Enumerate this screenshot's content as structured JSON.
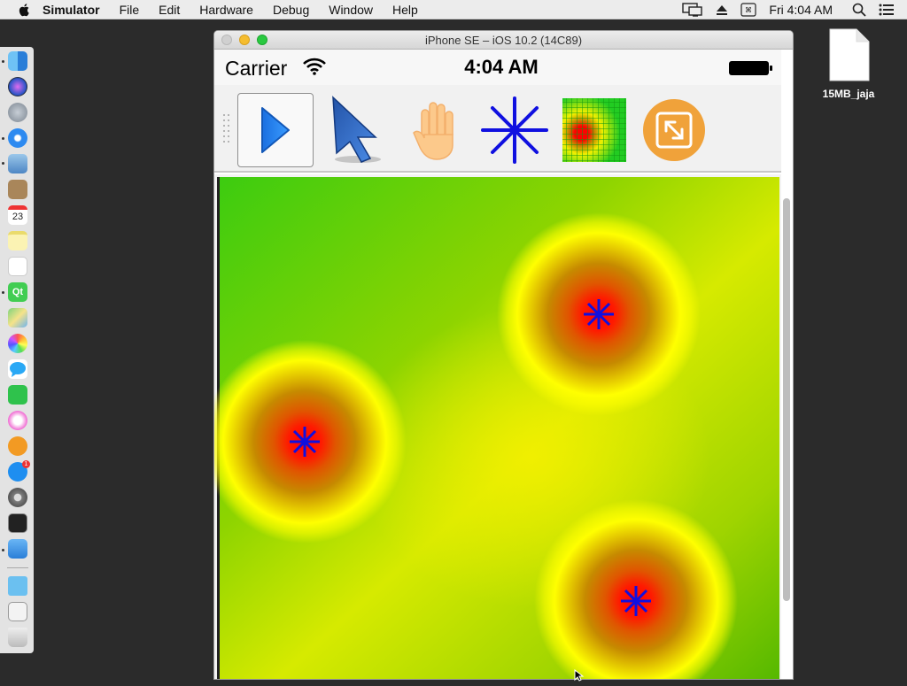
{
  "menubar": {
    "app_name": "Simulator",
    "items": [
      "File",
      "Edit",
      "Hardware",
      "Debug",
      "Window",
      "Help"
    ],
    "clock": "Fri 4:04 AM",
    "status_icons": [
      "display-icon",
      "eject-icon",
      "keyboard-icon",
      "spotlight-search-icon",
      "notification-center-icon"
    ]
  },
  "window": {
    "title": "iPhone SE – iOS 10.2 (14C89)"
  },
  "ios_status": {
    "carrier": "Carrier",
    "time": "4:04 AM"
  },
  "toolbar": {
    "tools": [
      "run-icon",
      "select-arrow-icon",
      "pan-hand-icon",
      "add-point-icon",
      "heatmap-icon",
      "fit-view-icon"
    ],
    "selected": "run-icon"
  },
  "heatmap": {
    "points_count": 3,
    "colors": {
      "low": "#3cc614",
      "mid": "#f5f500",
      "high": "#ff0000",
      "marker": "#1010e0"
    }
  },
  "desktop": {
    "file_name": "15MB_jaja"
  },
  "dock": {
    "apps": [
      "finder-icon",
      "siri-icon",
      "launchpad-icon",
      "safari-icon",
      "preview-icon",
      "contacts-icon",
      "calendar-icon",
      "notes-icon",
      "reminders-icon",
      "qt-creator-icon",
      "maps-icon",
      "photos-icon",
      "messages-icon",
      "facetime-icon",
      "itunes-icon",
      "ibooks-icon",
      "app-store-icon",
      "system-preferences-icon",
      "terminal-icon",
      "simulator-icon",
      "downloads-folder-icon",
      "documents-stack-icon",
      "trash-icon"
    ],
    "calendar_day": "23",
    "qt_label": "Qt",
    "app_store_badge": "1"
  }
}
